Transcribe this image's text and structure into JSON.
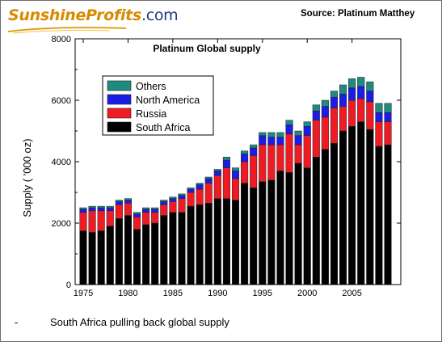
{
  "logo": {
    "part1": "Sunshine",
    "part2": "Profits",
    "suffix": ".com"
  },
  "source": "Source: Platinum Matthey",
  "caption": {
    "bullet": "-",
    "text": "South Africa pulling back global supply"
  },
  "colors": {
    "south_africa": "#000000",
    "russia": "#ee1b24",
    "north_america": "#1c1ce6",
    "others": "#1f8a80"
  },
  "chart_data": {
    "type": "bar",
    "stacked": true,
    "title": "Platinum Global supply",
    "xlabel": "",
    "ylabel": "Supply ( '000 oz)",
    "ylim": [
      0,
      8000
    ],
    "yticks": [
      0,
      2000,
      4000,
      6000,
      8000
    ],
    "xticks": [
      1975,
      1980,
      1985,
      1990,
      1995,
      2000,
      2005
    ],
    "categories": [
      1975,
      1976,
      1977,
      1978,
      1979,
      1980,
      1981,
      1982,
      1983,
      1984,
      1985,
      1986,
      1987,
      1988,
      1989,
      1990,
      1991,
      1992,
      1993,
      1994,
      1995,
      1996,
      1997,
      1998,
      1999,
      2000,
      2001,
      2002,
      2003,
      2004,
      2005,
      2006,
      2007,
      2008,
      2009
    ],
    "legend_position": "top-left",
    "series": [
      {
        "name": "South Africa",
        "color": "#000000",
        "values": [
          1750,
          1700,
          1750,
          1900,
          2150,
          2250,
          1800,
          1950,
          2000,
          2250,
          2350,
          2350,
          2550,
          2600,
          2650,
          2800,
          2800,
          2750,
          3300,
          3150,
          3350,
          3400,
          3700,
          3650,
          3950,
          3800,
          4150,
          4400,
          4600,
          5000,
          5150,
          5300,
          5050,
          4500,
          4550
        ]
      },
      {
        "name": "Russia",
        "color": "#ee1b24",
        "values": [
          600,
          700,
          650,
          500,
          450,
          400,
          400,
          400,
          350,
          350,
          350,
          450,
          450,
          500,
          650,
          750,
          1000,
          700,
          700,
          1050,
          1200,
          1150,
          850,
          1250,
          600,
          1050,
          1200,
          1050,
          1150,
          800,
          850,
          750,
          900,
          800,
          750
        ]
      },
      {
        "name": "North America",
        "color": "#1c1ce6",
        "values": [
          100,
          100,
          100,
          100,
          100,
          100,
          100,
          100,
          100,
          100,
          100,
          100,
          100,
          150,
          150,
          150,
          250,
          250,
          250,
          250,
          300,
          250,
          250,
          300,
          300,
          300,
          300,
          350,
          350,
          400,
          400,
          400,
          350,
          300,
          300
        ]
      },
      {
        "name": "Others",
        "color": "#1f8a80",
        "values": [
          50,
          50,
          50,
          50,
          50,
          50,
          50,
          50,
          50,
          50,
          50,
          50,
          50,
          50,
          50,
          50,
          100,
          100,
          100,
          100,
          100,
          150,
          150,
          150,
          150,
          150,
          200,
          200,
          200,
          300,
          300,
          300,
          300,
          300,
          300
        ]
      }
    ]
  }
}
